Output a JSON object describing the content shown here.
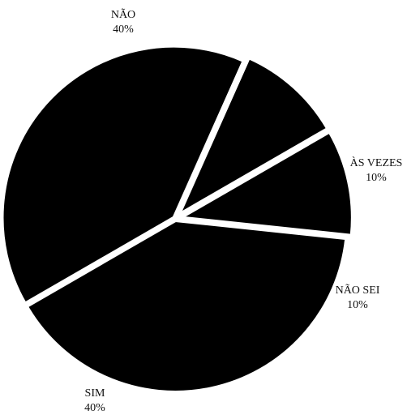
{
  "chart_data": {
    "type": "pie",
    "slices": [
      {
        "label": "NÃO",
        "percent": "40%",
        "value": 40
      },
      {
        "label": "ÀS VEZES",
        "percent": "10%",
        "value": 10
      },
      {
        "label": "NÃO SEI",
        "percent": "10%",
        "value": 10
      },
      {
        "label": "SIM",
        "percent": "40%",
        "value": 40
      }
    ],
    "colors": {
      "slice": "#000000",
      "background": "#ffffff",
      "label": "#111111"
    },
    "exploded": true,
    "legend": "none"
  }
}
